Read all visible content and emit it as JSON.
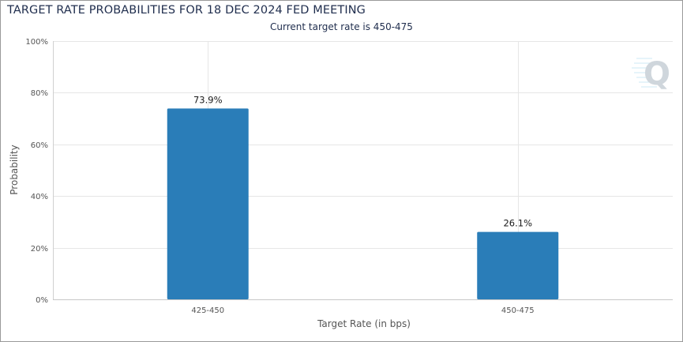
{
  "chart_data": {
    "type": "bar",
    "title": "TARGET RATE PROBABILITIES FOR 18 DEC 2024 FED MEETING",
    "subtitle": "Current target rate is 450-475",
    "categories": [
      "425-450",
      "450-475"
    ],
    "values": [
      73.9,
      26.1
    ],
    "data_labels": [
      "73.9%",
      "26.1%"
    ],
    "xlabel": "Target Rate (in bps)",
    "ylabel": "Probability",
    "ylim": [
      0,
      100
    ],
    "yticks": [
      0,
      20,
      40,
      60,
      80,
      100
    ],
    "ytick_labels": [
      "0%",
      "20%",
      "40%",
      "60%",
      "80%",
      "100%"
    ],
    "grid": true,
    "bar_color": "#2a7db8",
    "logo": "Q"
  }
}
